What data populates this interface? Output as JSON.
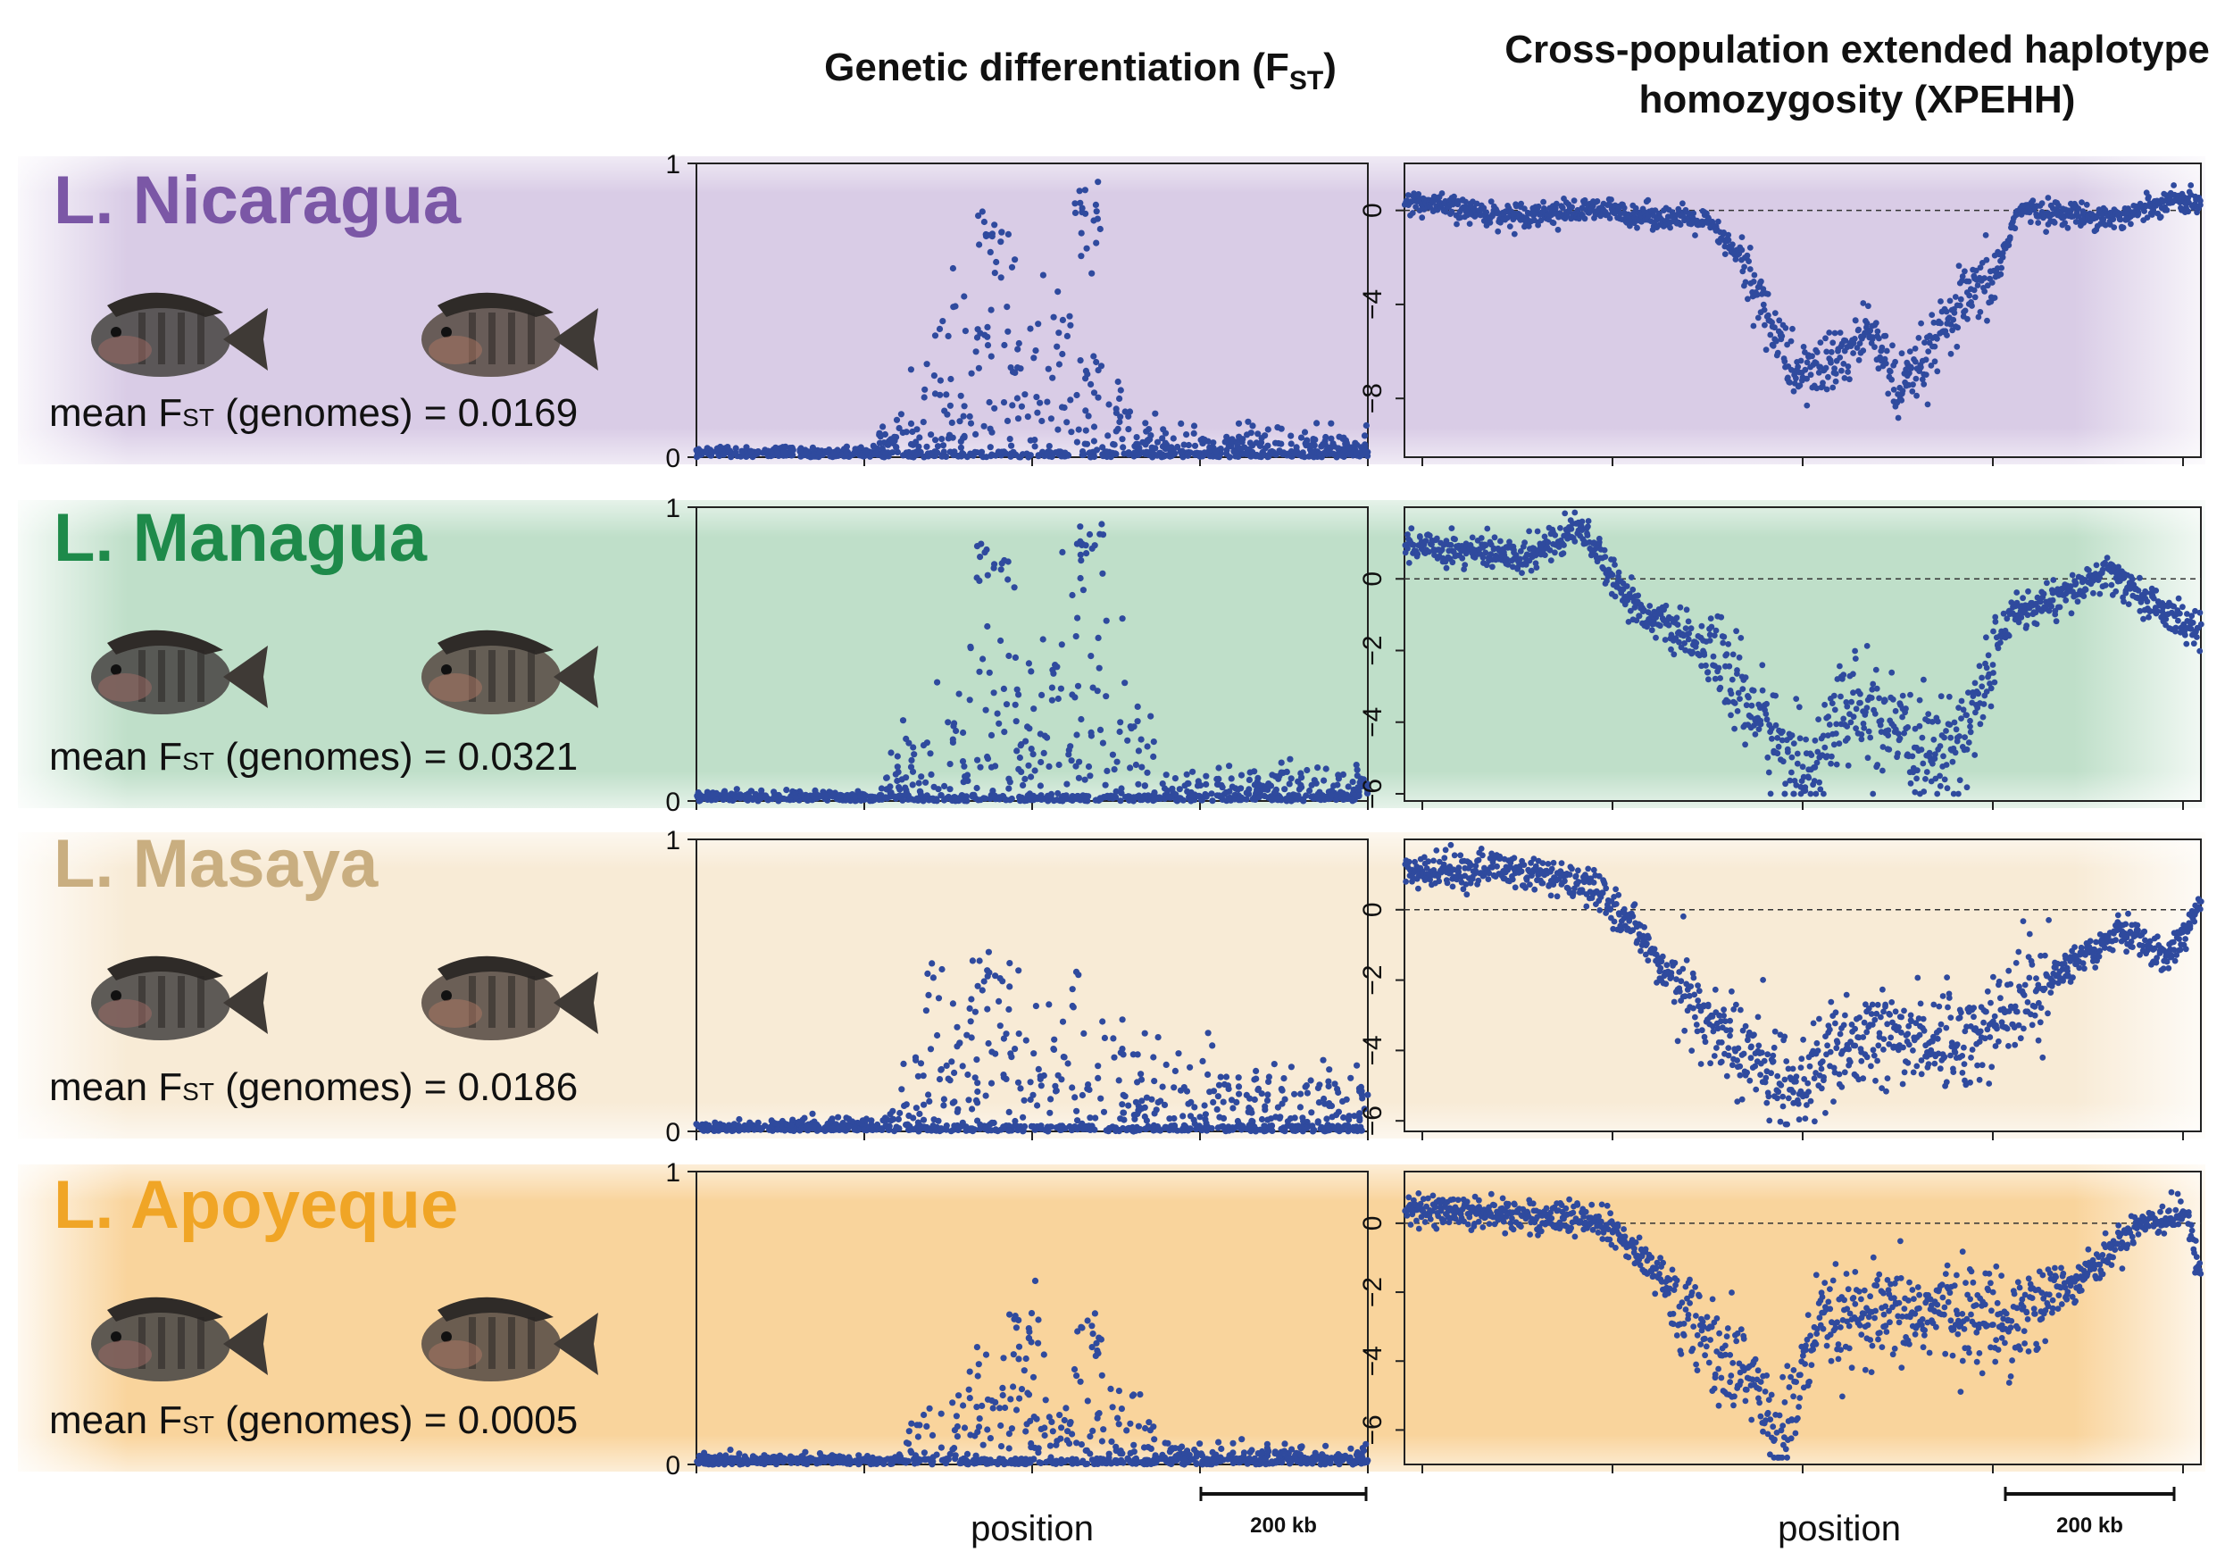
{
  "header": {
    "fst_title_prefix": "Genetic differentiation (F",
    "fst_title_sub": "ST",
    "fst_title_suffix": ")",
    "xpehh_title_line1": "Cross-population extended haplotype",
    "xpehh_title_line2": "homozygosity (XPEHH)"
  },
  "x_axis_label": "position",
  "scale_bar_label": "200 kb",
  "lakes": [
    {
      "name": "L. Nicaragua",
      "name_color": "#7b57a6",
      "bg_color": "#d9cce6",
      "mean_fst_prefix": "mean F",
      "mean_fst_sub": "ST",
      "mean_fst_suffix": " (genomes) = 0.0169"
    },
    {
      "name": "L. Managua",
      "name_color": "#1e8a4a",
      "bg_color": "#bfdfc9",
      "mean_fst_prefix": "mean F",
      "mean_fst_sub": "ST",
      "mean_fst_suffix": " (genomes) = 0.0321"
    },
    {
      "name": "L. Masaya",
      "name_color": "#c9ae80",
      "bg_color": "#f8ebd6",
      "mean_fst_prefix": "mean F",
      "mean_fst_sub": "ST",
      "mean_fst_suffix": " (genomes) = 0.0186"
    },
    {
      "name": "L. Apoyeque",
      "name_color": "#f0a526",
      "bg_color": "#f9d49c",
      "mean_fst_prefix": "mean F",
      "mean_fst_sub": "ST",
      "mean_fst_suffix": " (genomes) = 0.0005"
    }
  ],
  "colors": {
    "points": "#2f4a9e",
    "axis": "#222222"
  },
  "chart_data": [
    {
      "type": "scatter",
      "panel": "L. Nicaragua Fst",
      "ylim": [
        0,
        1
      ],
      "yticks": [
        "0",
        "1"
      ],
      "x_range": [
        0,
        1000
      ],
      "ylabel": "",
      "profile": [
        [
          0,
          0.01
        ],
        [
          250,
          0.01
        ],
        [
          300,
          0.08
        ],
        [
          380,
          0.3
        ],
        [
          420,
          0.35
        ],
        [
          480,
          0.3
        ],
        [
          560,
          0.35
        ],
        [
          620,
          0.15
        ],
        [
          700,
          0.05
        ],
        [
          1000,
          0.04
        ]
      ],
      "peaks": [
        [
          430,
          0.84
        ],
        [
          440,
          0.82
        ],
        [
          460,
          0.78
        ],
        [
          590,
          0.94
        ],
        [
          570,
          0.9
        ],
        [
          580,
          0.86
        ]
      ]
    },
    {
      "type": "scatter",
      "panel": "L. Nicaragua XPEHH",
      "ylim": [
        -10.5,
        2
      ],
      "yticks": [
        "0",
        "-4",
        "-8"
      ],
      "x_range": [
        0,
        1000
      ],
      "profile": [
        [
          0,
          0.4
        ],
        [
          120,
          -0.2
        ],
        [
          250,
          0
        ],
        [
          380,
          -0.5
        ],
        [
          420,
          -2
        ],
        [
          450,
          -4
        ],
        [
          490,
          -7
        ],
        [
          540,
          -6.5
        ],
        [
          590,
          -5
        ],
        [
          620,
          -8
        ],
        [
          660,
          -6
        ],
        [
          700,
          -4
        ],
        [
          740,
          -3
        ],
        [
          770,
          0
        ],
        [
          900,
          -0.3
        ],
        [
          960,
          0.5
        ],
        [
          1000,
          0.3
        ]
      ]
    },
    {
      "type": "scatter",
      "panel": "L. Managua Fst",
      "ylim": [
        0,
        1
      ],
      "yticks": [
        "0",
        "1"
      ],
      "x_range": [
        0,
        1000
      ],
      "profile": [
        [
          0,
          0.01
        ],
        [
          270,
          0.01
        ],
        [
          300,
          0.1
        ],
        [
          380,
          0.3
        ],
        [
          430,
          0.4
        ],
        [
          500,
          0.3
        ],
        [
          570,
          0.42
        ],
        [
          630,
          0.3
        ],
        [
          700,
          0.05
        ],
        [
          1000,
          0.07
        ]
      ],
      "peaks": [
        [
          430,
          0.88
        ],
        [
          450,
          0.82
        ],
        [
          580,
          0.96
        ],
        [
          590,
          0.92
        ],
        [
          570,
          0.85
        ]
      ]
    },
    {
      "type": "scatter",
      "panel": "L. Managua XPEHH",
      "ylim": [
        -6.2,
        2
      ],
      "yticks": [
        "0",
        "-2",
        "-4",
        "-6"
      ],
      "x_range": [
        0,
        1000
      ],
      "profile": [
        [
          0,
          1.0
        ],
        [
          150,
          0.6
        ],
        [
          220,
          1.5
        ],
        [
          290,
          -0.8
        ],
        [
          380,
          -2
        ],
        [
          450,
          -4
        ],
        [
          500,
          -5.5
        ],
        [
          560,
          -3.5
        ],
        [
          620,
          -4.5
        ],
        [
          680,
          -5
        ],
        [
          720,
          -3.5
        ],
        [
          760,
          -1
        ],
        [
          830,
          -0.5
        ],
        [
          880,
          0.2
        ],
        [
          960,
          -1
        ],
        [
          1000,
          -1.5
        ]
      ]
    },
    {
      "type": "scatter",
      "panel": "L. Masaya Fst",
      "ylim": [
        0,
        1
      ],
      "yticks": [
        "0",
        "1"
      ],
      "x_range": [
        0,
        1000
      ],
      "profile": [
        [
          0,
          0.01
        ],
        [
          280,
          0.02
        ],
        [
          320,
          0.15
        ],
        [
          400,
          0.25
        ],
        [
          460,
          0.3
        ],
        [
          560,
          0.2
        ],
        [
          700,
          0.15
        ],
        [
          850,
          0.12
        ],
        [
          1000,
          0.1
        ]
      ],
      "peaks": [
        [
          350,
          0.58
        ],
        [
          420,
          0.6
        ],
        [
          440,
          0.58
        ],
        [
          560,
          0.55
        ]
      ]
    },
    {
      "type": "scatter",
      "panel": "L. Masaya XPEHH",
      "ylim": [
        -6.3,
        2
      ],
      "yticks": [
        "0",
        "-2",
        "-4",
        "-6"
      ],
      "x_range": [
        0,
        1000
      ],
      "profile": [
        [
          0,
          1.0
        ],
        [
          120,
          1.2
        ],
        [
          240,
          0.6
        ],
        [
          300,
          -0.8
        ],
        [
          350,
          -2.5
        ],
        [
          420,
          -4
        ],
        [
          480,
          -5
        ],
        [
          560,
          -4
        ],
        [
          620,
          -3.5
        ],
        [
          700,
          -3.8
        ],
        [
          780,
          -2.5
        ],
        [
          840,
          -1.5
        ],
        [
          900,
          -0.5
        ],
        [
          960,
          -1.4
        ],
        [
          1000,
          0.2
        ]
      ]
    },
    {
      "type": "scatter",
      "panel": "L. Apoyeque Fst",
      "ylim": [
        0,
        1
      ],
      "yticks": [
        "0",
        "1"
      ],
      "x_range": [
        0,
        1000
      ],
      "profile": [
        [
          0,
          0.01
        ],
        [
          300,
          0.01
        ],
        [
          340,
          0.12
        ],
        [
          400,
          0.2
        ],
        [
          480,
          0.25
        ],
        [
          560,
          0.22
        ],
        [
          660,
          0.1
        ],
        [
          720,
          0.03
        ],
        [
          1000,
          0.03
        ]
      ],
      "peaks": [
        [
          480,
          0.52
        ],
        [
          500,
          0.5
        ],
        [
          580,
          0.54
        ],
        [
          600,
          0.52
        ]
      ]
    },
    {
      "type": "scatter",
      "panel": "L. Apoyeque XPEHH",
      "ylim": [
        -7,
        1.5
      ],
      "yticks": [
        "0",
        "-2",
        "-4",
        "-6"
      ],
      "x_range": [
        0,
        1000
      ],
      "profile": [
        [
          0,
          0.4
        ],
        [
          120,
          0.3
        ],
        [
          250,
          0
        ],
        [
          300,
          -1
        ],
        [
          350,
          -2.5
        ],
        [
          400,
          -4
        ],
        [
          440,
          -4.5
        ],
        [
          470,
          -6.5
        ],
        [
          520,
          -3
        ],
        [
          600,
          -2.8
        ],
        [
          680,
          -2.5
        ],
        [
          760,
          -2.8
        ],
        [
          820,
          -2
        ],
        [
          880,
          -1
        ],
        [
          920,
          0
        ],
        [
          980,
          0.3
        ],
        [
          1000,
          -1.5
        ]
      ]
    }
  ]
}
